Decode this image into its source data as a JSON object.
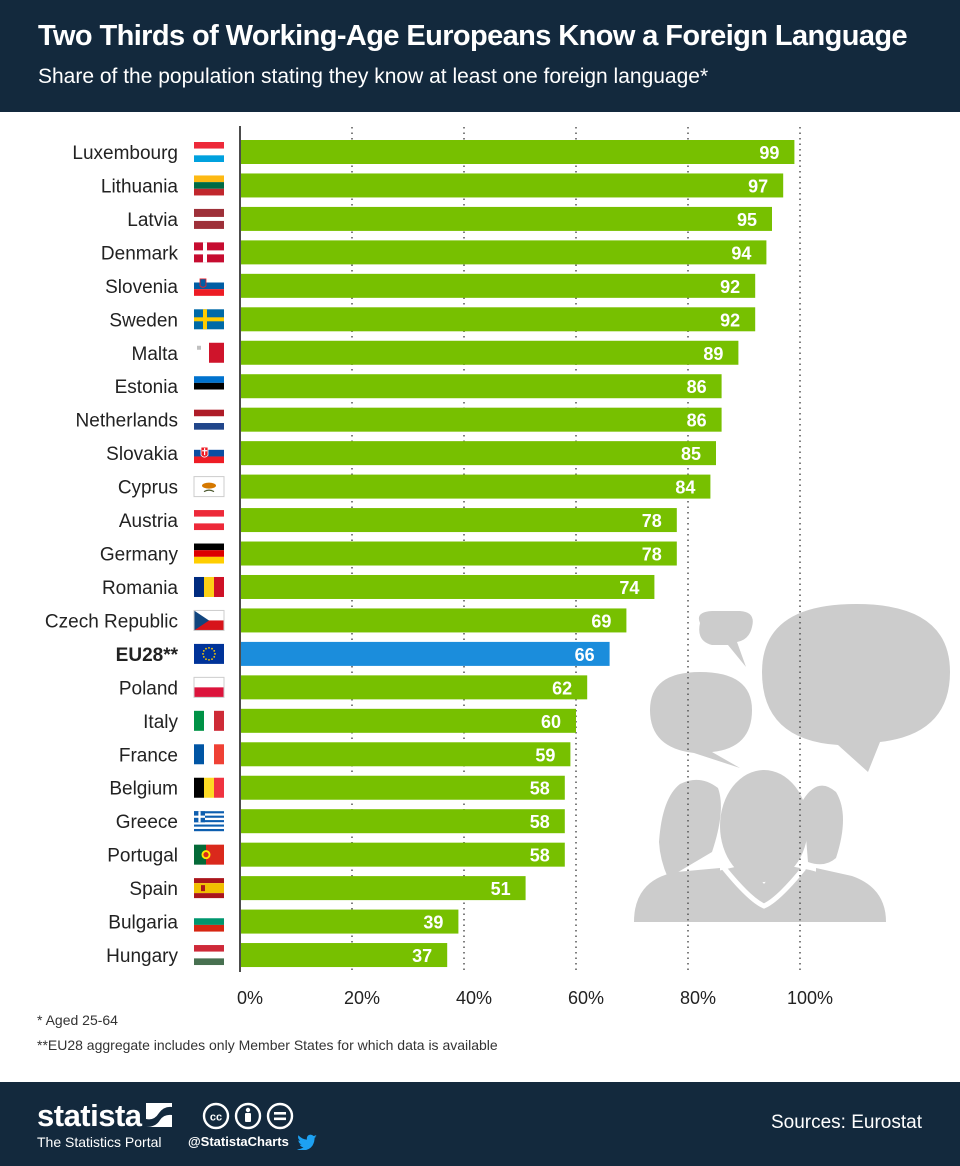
{
  "header": {
    "title": "Two Thirds of Working-Age Europeans Know a Foreign Language",
    "subtitle": "Share of the population stating they know at least one foreign language*"
  },
  "chart_data": {
    "type": "bar",
    "orientation": "horizontal",
    "categories": [
      "Luxembourg",
      "Lithuania",
      "Latvia",
      "Denmark",
      "Slovenia",
      "Sweden",
      "Malta",
      "Estonia",
      "Netherlands",
      "Slovakia",
      "Cyprus",
      "Austria",
      "Germany",
      "Romania",
      "Czech Republic",
      "EU28**",
      "Poland",
      "Italy",
      "France",
      "Belgium",
      "Greece",
      "Portugal",
      "Spain",
      "Bulgaria",
      "Hungary"
    ],
    "values": [
      99,
      97,
      95,
      94,
      92,
      92,
      89,
      86,
      86,
      85,
      84,
      78,
      78,
      74,
      69,
      66,
      62,
      60,
      59,
      58,
      58,
      58,
      51,
      39,
      37
    ],
    "highlight_category": "EU28**",
    "xlim": [
      0,
      100
    ],
    "x_ticks": [
      "0%",
      "20%",
      "40%",
      "60%",
      "80%",
      "100%"
    ],
    "grid": "vertical dotted",
    "colors": {
      "bar": "#77c000",
      "highlight": "#1b8ddc",
      "label": "#ffffff"
    },
    "flag_icons": [
      "luxembourg-flag-icon",
      "lithuania-flag-icon",
      "latvia-flag-icon",
      "denmark-flag-icon",
      "slovenia-flag-icon",
      "sweden-flag-icon",
      "malta-flag-icon",
      "estonia-flag-icon",
      "netherlands-flag-icon",
      "slovakia-flag-icon",
      "cyprus-flag-icon",
      "austria-flag-icon",
      "germany-flag-icon",
      "romania-flag-icon",
      "czech-republic-flag-icon",
      "eu-flag-icon",
      "poland-flag-icon",
      "italy-flag-icon",
      "france-flag-icon",
      "belgium-flag-icon",
      "greece-flag-icon",
      "portugal-flag-icon",
      "spain-flag-icon",
      "bulgaria-flag-icon",
      "hungary-flag-icon"
    ]
  },
  "decoration": {
    "icon": "people-speech-bubbles-icon"
  },
  "notes": {
    "note1": "* Aged 25-64",
    "note2": "**EU28 aggregate includes only Member States for which data is available"
  },
  "footer": {
    "brand": "statista",
    "tagline": "The Statistics Portal",
    "handle": "@StatistaCharts",
    "sources": "Sources: Eurostat",
    "icons": [
      "statista-logo-icon",
      "creative-commons-icon",
      "attribution-icon",
      "no-derivatives-icon",
      "twitter-icon"
    ]
  }
}
